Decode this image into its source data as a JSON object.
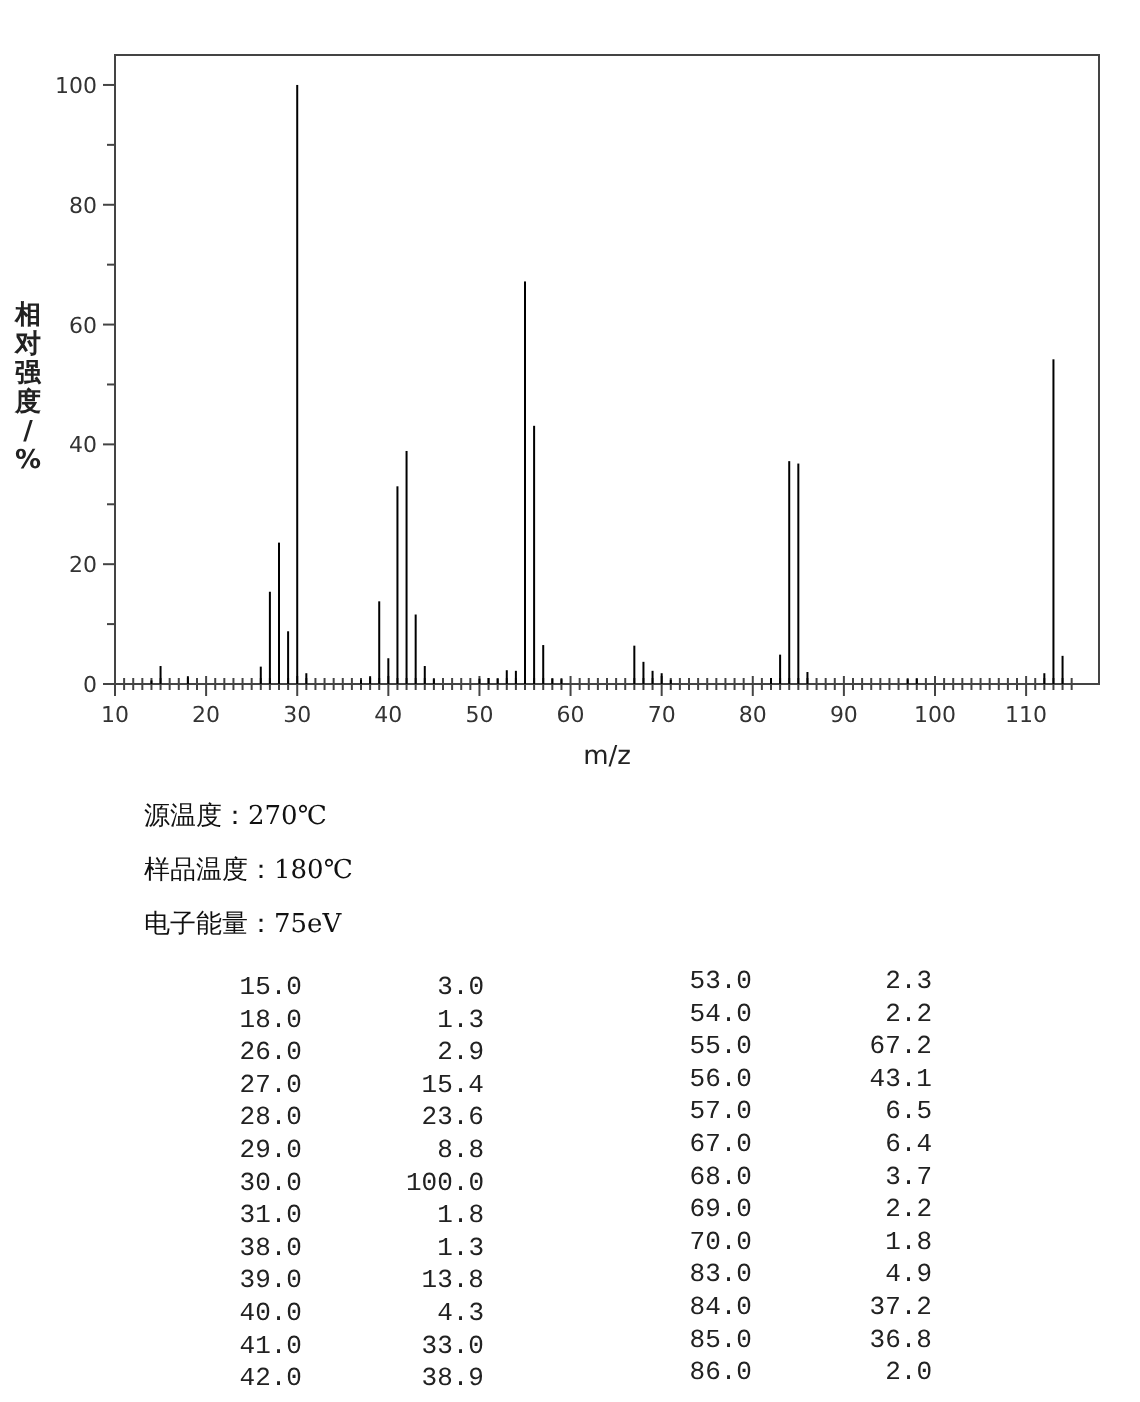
{
  "chart_data": {
    "type": "bar",
    "xlabel": "m/z",
    "ylabel": "相对强度/%",
    "color": "#000000",
    "x": [
      14,
      15,
      18,
      26,
      27,
      28,
      29,
      30,
      31,
      37,
      38,
      39,
      40,
      41,
      42,
      43,
      44,
      45,
      50,
      51,
      52,
      53,
      54,
      55,
      56,
      57,
      58,
      59,
      67,
      68,
      69,
      70,
      71,
      82,
      83,
      84,
      85,
      86,
      97,
      98,
      112,
      113,
      114
    ],
    "values": [
      0.6,
      3.0,
      1.3,
      2.9,
      15.4,
      23.6,
      8.8,
      100.0,
      1.8,
      0.7,
      1.3,
      13.8,
      4.3,
      33.0,
      38.9,
      11.6,
      3.0,
      0.8,
      0.9,
      1.0,
      0.9,
      2.3,
      2.2,
      67.2,
      43.1,
      6.5,
      0.9,
      0.8,
      6.4,
      3.7,
      2.2,
      1.8,
      0.7,
      1.0,
      4.9,
      37.2,
      36.8,
      2.0,
      0.8,
      0.9,
      1.8,
      54.2,
      4.7
    ],
    "xlim": [
      10,
      118
    ],
    "ylim": [
      0,
      105
    ],
    "xticks": [
      10,
      {
        "value": 11,
        "label": null
      },
      {
        "value": 12,
        "label": null
      },
      {
        "value": 13,
        "label": null
      },
      {
        "value": 14,
        "label": null
      },
      {
        "value": 15,
        "label": null
      },
      {
        "value": 16,
        "label": null
      },
      {
        "value": 17,
        "label": null
      },
      {
        "value": 18,
        "label": null
      },
      {
        "value": 19,
        "label": null
      },
      20,
      {
        "value": 21,
        "label": null
      },
      {
        "value": 22,
        "label": null
      },
      {
        "value": 23,
        "label": null
      },
      {
        "value": 24,
        "label": null
      },
      {
        "value": 25,
        "label": null
      },
      {
        "value": 26,
        "label": null
      },
      {
        "value": 27,
        "label": null
      },
      {
        "value": 28,
        "label": null
      },
      {
        "value": 29,
        "label": null
      },
      30,
      {
        "value": 31,
        "label": null
      },
      {
        "value": 32,
        "label": null
      },
      {
        "value": 33,
        "label": null
      },
      {
        "value": 34,
        "label": null
      },
      {
        "value": 35,
        "label": null
      },
      {
        "value": 36,
        "label": null
      },
      {
        "value": 37,
        "label": null
      },
      {
        "value": 38,
        "label": null
      },
      {
        "value": 39,
        "label": null
      },
      40,
      {
        "value": 41,
        "label": null
      },
      {
        "value": 42,
        "label": null
      },
      {
        "value": 43,
        "label": null
      },
      {
        "value": 44,
        "label": null
      },
      {
        "value": 45,
        "label": null
      },
      {
        "value": 46,
        "label": null
      },
      {
        "value": 47,
        "label": null
      },
      {
        "value": 48,
        "label": null
      },
      {
        "value": 49,
        "label": null
      },
      50,
      {
        "value": 51,
        "label": null
      },
      {
        "value": 52,
        "label": null
      },
      {
        "value": 53,
        "label": null
      },
      {
        "value": 54,
        "label": null
      },
      {
        "value": 55,
        "label": null
      },
      {
        "value": 56,
        "label": null
      },
      {
        "value": 57,
        "label": null
      },
      {
        "value": 58,
        "label": null
      },
      {
        "value": 59,
        "label": null
      },
      60,
      {
        "value": 61,
        "label": null
      },
      {
        "value": 62,
        "label": null
      },
      {
        "value": 63,
        "label": null
      },
      {
        "value": 64,
        "label": null
      },
      {
        "value": 65,
        "label": null
      },
      {
        "value": 66,
        "label": null
      },
      {
        "value": 67,
        "label": null
      },
      {
        "value": 68,
        "label": null
      },
      {
        "value": 69,
        "label": null
      },
      70,
      {
        "value": 71,
        "label": null
      },
      {
        "value": 72,
        "label": null
      },
      {
        "value": 73,
        "label": null
      },
      {
        "value": 74,
        "label": null
      },
      {
        "value": 75,
        "label": null
      },
      {
        "value": 76,
        "label": null
      },
      {
        "value": 77,
        "label": null
      },
      {
        "value": 78,
        "label": null
      },
      {
        "value": 79,
        "label": null
      },
      80,
      {
        "value": 81,
        "label": null
      },
      {
        "value": 82,
        "label": null
      },
      {
        "value": 83,
        "label": null
      },
      {
        "value": 84,
        "label": null
      },
      {
        "value": 85,
        "label": null
      },
      {
        "value": 86,
        "label": null
      },
      {
        "value": 87,
        "label": null
      },
      {
        "value": 88,
        "label": null
      },
      {
        "value": 89,
        "label": null
      },
      90,
      {
        "value": 91,
        "label": null
      },
      {
        "value": 92,
        "label": null
      },
      {
        "value": 93,
        "label": null
      },
      {
        "value": 94,
        "label": null
      },
      {
        "value": 95,
        "label": null
      },
      {
        "value": 96,
        "label": null
      },
      {
        "value": 97,
        "label": null
      },
      {
        "value": 98,
        "label": null
      },
      {
        "value": 99,
        "label": null
      },
      100,
      {
        "value": 101,
        "label": null
      },
      {
        "value": 102,
        "label": null
      },
      {
        "value": 103,
        "label": null
      },
      {
        "value": 104,
        "label": null
      },
      {
        "value": 105,
        "label": null
      },
      {
        "value": 106,
        "label": null
      },
      {
        "value": 107,
        "label": null
      },
      {
        "value": 108,
        "label": null
      },
      {
        "value": 109,
        "label": null
      },
      110,
      {
        "value": 111,
        "label": null
      },
      {
        "value": 112,
        "label": null
      },
      {
        "value": 113,
        "label": null
      },
      {
        "value": 114,
        "label": null
      },
      {
        "value": 115,
        "label": null
      }
    ],
    "yticks": [
      0,
      {
        "value": 10,
        "label": null
      },
      20,
      {
        "value": 30,
        "label": null
      },
      40,
      {
        "value": 50,
        "label": null
      },
      60,
      {
        "value": 70,
        "label": null
      },
      80,
      {
        "value": 90,
        "label": null
      },
      100
    ],
    "annotations": [
      "源温度：270℃",
      "样品温度：180℃",
      "电子能量：75eV",
      "15.0",
      "3.0",
      "53.0",
      "2.3",
      "18.0",
      "1.3",
      "54.0",
      "2.2",
      "26.0",
      "2.9",
      "55.0",
      "67.2",
      "27.0",
      "15.4",
      "56.0",
      "43.1",
      "28.0",
      "23.6",
      "57.0",
      "6.5",
      "29.0",
      "8.8",
      "67.0",
      "6.4",
      "30.0",
      "100.0",
      "68.0",
      "3.7",
      "31.0",
      "1.8",
      "69.0",
      "2.2",
      "38.0",
      "1.3",
      "70.0",
      "1.8",
      "39.0",
      "13.8",
      "83.0",
      "4.9",
      "40.0",
      "4.3",
      "84.0",
      "37.2",
      "41.0",
      "33.0",
      "85.0",
      "36.8",
      "42.0",
      "38.9",
      "86.0",
      "2.0"
    ]
  }
}
